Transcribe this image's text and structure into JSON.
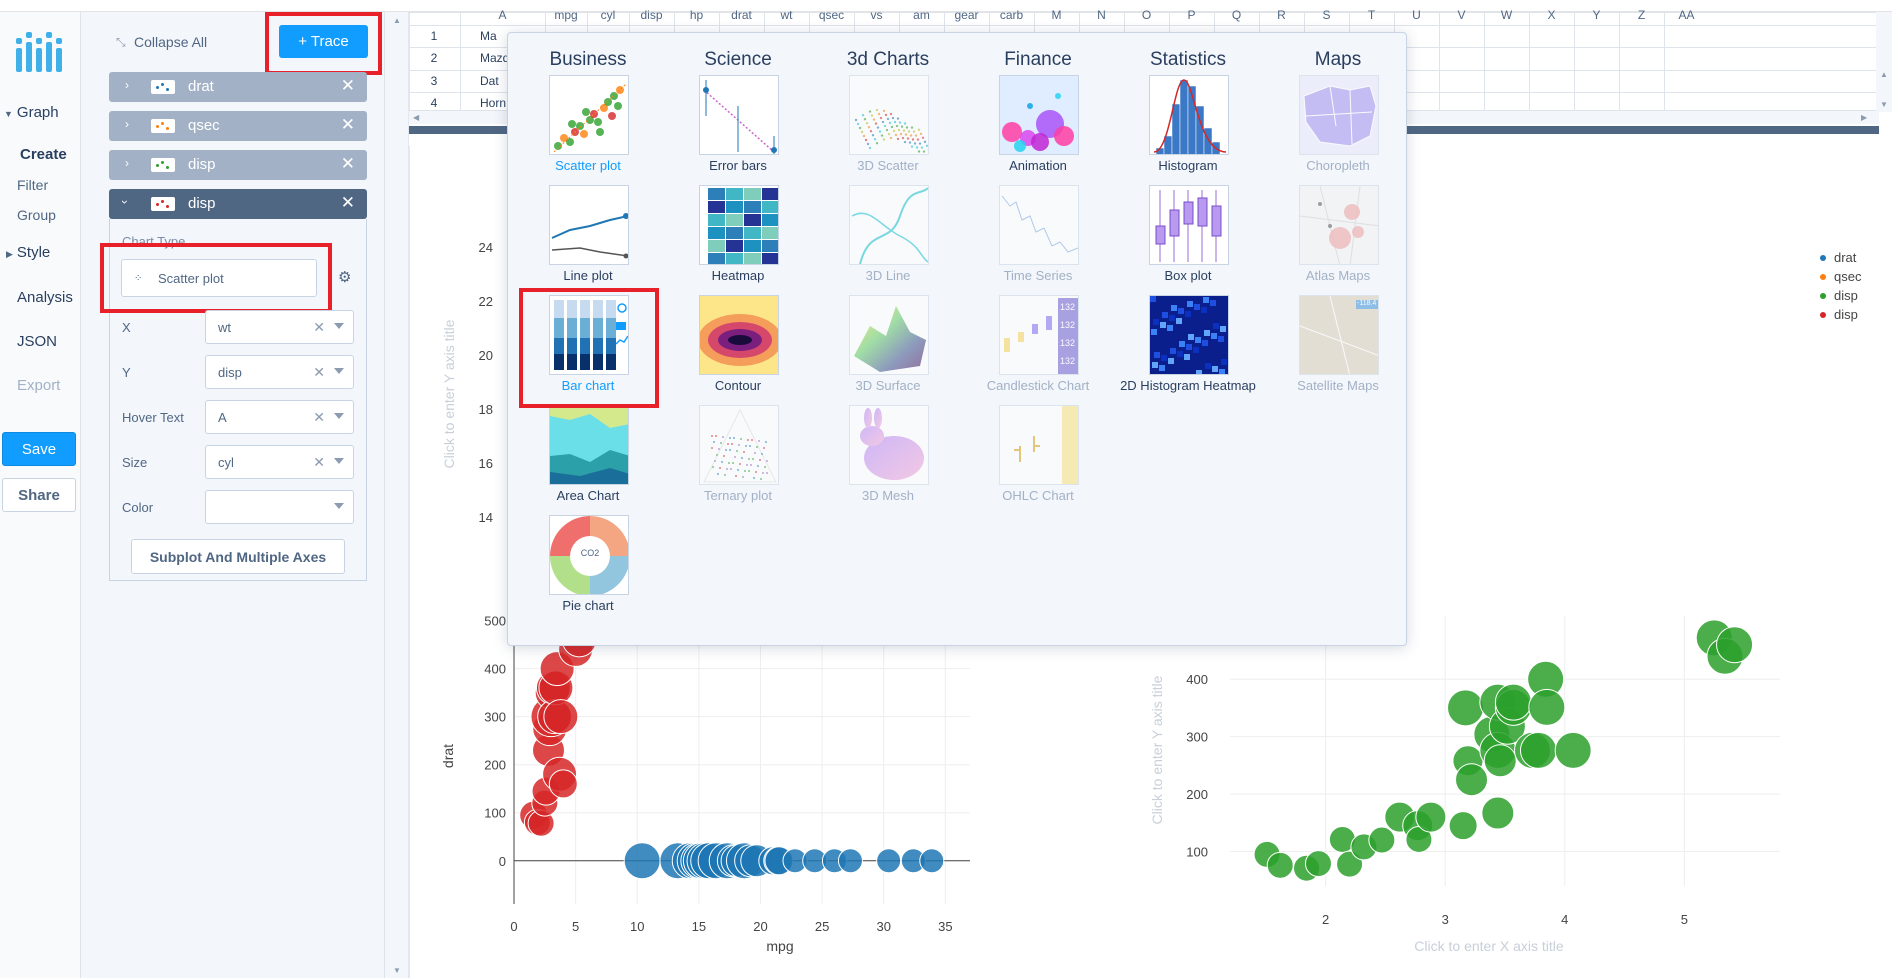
{
  "nav": {
    "graph": "Graph",
    "create": "Create",
    "filter": "Filter",
    "group": "Group",
    "style": "Style",
    "analysis": "Analysis",
    "json": "JSON",
    "export": "Export",
    "save": "Save",
    "share": "Share"
  },
  "panel": {
    "collapse_all": "Collapse All",
    "add_trace": "+ Trace",
    "traces": [
      {
        "name": "drat",
        "color": "#1f77b4"
      },
      {
        "name": "qsec",
        "color": "#ff7f0e"
      },
      {
        "name": "disp",
        "color": "#2ca02c"
      },
      {
        "name": "disp",
        "color": "#d62728"
      }
    ],
    "chart_type_label": "Chart Type",
    "chart_type_value": "Scatter plot",
    "fields": {
      "x_label": "X",
      "x_value": "wt",
      "y_label": "Y",
      "y_value": "disp",
      "hover_label": "Hover Text",
      "hover_value": "A",
      "size_label": "Size",
      "size_value": "cyl",
      "color_label": "Color",
      "color_value": ""
    },
    "subplot_button": "Subplot And Multiple Axes"
  },
  "grid": {
    "columns": [
      "A",
      "mpg",
      "cyl",
      "disp",
      "hp",
      "drat",
      "wt",
      "qsec",
      "vs",
      "am",
      "gear",
      "carb",
      "M",
      "N",
      "O",
      "P",
      "Q",
      "R",
      "S",
      "T",
      "U",
      "V",
      "W",
      "X",
      "Y",
      "Z",
      "AA"
    ],
    "rows": [
      {
        "num": "1",
        "a": "Ma"
      },
      {
        "num": "2",
        "a": "Mazd"
      },
      {
        "num": "3",
        "a": "Dat"
      },
      {
        "num": "4",
        "a": "Horn"
      }
    ]
  },
  "popover": {
    "categories": [
      "Business",
      "Science",
      "3d Charts",
      "Finance",
      "Statistics",
      "Maps"
    ],
    "items": [
      [
        "Scatter plot",
        "Line plot",
        "Bar chart",
        "Area Chart",
        "Pie chart"
      ],
      [
        "Error bars",
        "Heatmap",
        "Contour",
        "Ternary plot"
      ],
      [
        "3D Scatter",
        "3D Line",
        "3D Surface",
        "3D Mesh"
      ],
      [
        "Animation",
        "Time Series",
        "Candlestick Chart",
        "OHLC Chart"
      ],
      [
        "Histogram",
        "Box plot",
        "2D Histogram Heatmap"
      ],
      [
        "Choropleth",
        "Atlas Maps",
        "Satellite Maps"
      ]
    ],
    "pie_center": "CO2",
    "candlestick_tags": [
      "132",
      "132",
      "132",
      "132"
    ],
    "satellite_tag": "-118.4"
  },
  "plot": {
    "upper_y_ticks": [
      "24",
      "22",
      "20",
      "18",
      "16",
      "14"
    ],
    "upper_y_title": "Click to enter Y axis title",
    "legend": [
      {
        "name": "drat",
        "color": "#1f77b4"
      },
      {
        "name": "qsec",
        "color": "#ff7f0e"
      },
      {
        "name": "disp",
        "color": "#2ca02c"
      },
      {
        "name": "disp",
        "color": "#d62728"
      }
    ],
    "left": {
      "y_ticks": [
        "500",
        "400",
        "300",
        "200",
        "100",
        "0"
      ],
      "x_ticks": [
        "0",
        "5",
        "10",
        "15",
        "20",
        "25",
        "30",
        "35"
      ],
      "x_title": "mpg",
      "y_title": "drat"
    },
    "right": {
      "y_ticks": [
        "400",
        "300",
        "200",
        "100"
      ],
      "x_ticks": [
        "2",
        "3",
        "4",
        "5"
      ],
      "x_title": "Click to enter X axis title",
      "y_title": "Click to enter Y axis title"
    }
  },
  "chart_data": [
    {
      "type": "scatter",
      "xlabel": "mpg",
      "ylabel": "drat",
      "xlim": [
        0,
        37
      ],
      "ylim": [
        -90,
        520
      ],
      "series": [
        {
          "name": "disp",
          "color": "#d62728",
          "x": [
            1.6,
            1.9,
            2.2,
            2.5,
            2.6,
            2.8,
            2.9,
            3.0,
            3.1,
            3.2,
            3.3,
            3.4,
            3.5,
            3.7,
            3.8,
            4.0,
            5.0,
            5.3
          ],
          "y": [
            95,
            80,
            78,
            120,
            145,
            230,
            275,
            300,
            350,
            360,
            300,
            360,
            400,
            180,
            300,
            160,
            440,
            460
          ],
          "size": [
            14,
            13,
            13,
            13,
            14,
            16,
            17,
            20,
            17,
            17,
            17,
            17,
            17,
            17,
            17,
            14,
            17,
            17
          ]
        },
        {
          "name": "drat",
          "color": "#1f77b4",
          "x": [
            10.4,
            13.3,
            14.3,
            14.7,
            15.0,
            15.2,
            15.5,
            15.8,
            16.4,
            17.3,
            17.8,
            18.1,
            18.7,
            19.2,
            19.7,
            21.0,
            21.4,
            21.5,
            22.8,
            24.4,
            26.0,
            27.3,
            30.4,
            32.4,
            33.9
          ],
          "y": [
            0,
            0,
            0,
            0,
            0,
            0,
            0,
            0,
            0,
            0,
            0,
            0,
            0,
            0,
            0,
            0,
            0,
            0,
            0,
            0,
            0,
            0,
            0,
            0,
            0
          ],
          "size": [
            18,
            18,
            18,
            18,
            18,
            18,
            18,
            18,
            18,
            18,
            16,
            16,
            18,
            16,
            16,
            14,
            14,
            14,
            12,
            12,
            12,
            12,
            12,
            12,
            12
          ]
        }
      ]
    },
    {
      "type": "scatter",
      "xlim": [
        1.2,
        5.8
      ],
      "ylim": [
        40,
        510
      ],
      "series": [
        {
          "name": "disp",
          "color": "#2ca02c",
          "x": [
            1.51,
            1.62,
            1.84,
            1.94,
            2.14,
            2.2,
            2.32,
            2.47,
            2.62,
            2.77,
            2.78,
            2.88,
            3.15,
            3.17,
            3.19,
            3.22,
            3.39,
            3.44,
            3.44,
            3.44,
            3.46,
            3.52,
            3.57,
            3.57,
            3.73,
            3.78,
            3.84,
            3.85,
            4.07,
            5.25,
            5.34,
            5.42
          ],
          "y": [
            95,
            76,
            71,
            79,
            121,
            78,
            108,
            120,
            160,
            145,
            121,
            160,
            145,
            350,
            258,
            225,
            304,
            276,
            167,
            360,
            258,
            318,
            351,
            360,
            276,
            276,
            400,
            351,
            276,
            472,
            440,
            460
          ],
          "size": [
            13,
            13,
            13,
            13,
            13,
            13,
            13,
            13,
            15,
            15,
            13,
            15,
            14,
            18,
            15,
            16,
            18,
            18,
            16,
            18,
            16,
            18,
            18,
            18,
            18,
            18,
            18,
            18,
            18,
            18,
            18,
            18
          ]
        }
      ]
    }
  ]
}
